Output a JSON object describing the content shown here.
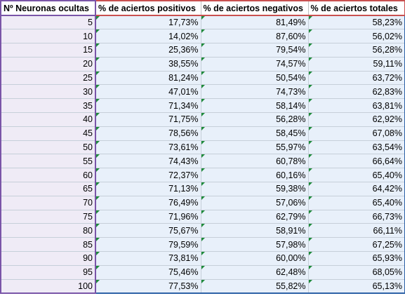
{
  "headers": {
    "col0": "Nº Neuronas ocultas",
    "col1": "% de aciertos positivos",
    "col2": "% de aciertos negativos",
    "col3": "% de aciertos totales"
  },
  "rows": [
    {
      "n": "5",
      "pos": "17,73%",
      "neg": "81,49%",
      "tot": "58,23%"
    },
    {
      "n": "10",
      "pos": "14,02%",
      "neg": "87,60%",
      "tot": "56,02%"
    },
    {
      "n": "15",
      "pos": "25,36%",
      "neg": "79,54%",
      "tot": "56,28%"
    },
    {
      "n": "20",
      "pos": "38,55%",
      "neg": "74,57%",
      "tot": "59,11%"
    },
    {
      "n": "25",
      "pos": "81,24%",
      "neg": "50,54%",
      "tot": "63,72%"
    },
    {
      "n": "30",
      "pos": "47,01%",
      "neg": "74,73%",
      "tot": "62,83%"
    },
    {
      "n": "35",
      "pos": "71,34%",
      "neg": "58,14%",
      "tot": "63,81%"
    },
    {
      "n": "40",
      "pos": "71,75%",
      "neg": "56,28%",
      "tot": "62,92%"
    },
    {
      "n": "45",
      "pos": "78,56%",
      "neg": "58,45%",
      "tot": "67,08%"
    },
    {
      "n": "50",
      "pos": "73,61%",
      "neg": "55,97%",
      "tot": "63,54%"
    },
    {
      "n": "55",
      "pos": "74,43%",
      "neg": "60,78%",
      "tot": "66,64%"
    },
    {
      "n": "60",
      "pos": "72,37%",
      "neg": "60,16%",
      "tot": "65,40%"
    },
    {
      "n": "65",
      "pos": "71,13%",
      "neg": "59,38%",
      "tot": "64,42%"
    },
    {
      "n": "70",
      "pos": "76,49%",
      "neg": "57,06%",
      "tot": "65,40%"
    },
    {
      "n": "75",
      "pos": "71,96%",
      "neg": "62,79%",
      "tot": "66,73%"
    },
    {
      "n": "80",
      "pos": "75,67%",
      "neg": "58,91%",
      "tot": "66,11%"
    },
    {
      "n": "85",
      "pos": "79,59%",
      "neg": "57,98%",
      "tot": "67,25%"
    },
    {
      "n": "90",
      "pos": "73,81%",
      "neg": "60,00%",
      "tot": "65,93%"
    },
    {
      "n": "95",
      "pos": "75,46%",
      "neg": "62,48%",
      "tot": "68,05%"
    },
    {
      "n": "100",
      "pos": "77,53%",
      "neg": "55,82%",
      "tot": "65,13%"
    }
  ],
  "colors": {
    "count_column_border": "#7a55a8",
    "header_border": "#c9504f",
    "values_border": "#2e62a7",
    "values_fill": "#e8f0fa",
    "count_fill": "#efebf6",
    "error_indicator": "#1d8a3a"
  },
  "icons": {
    "cell_indicator": "green-triangle-error-indicator-icon"
  }
}
